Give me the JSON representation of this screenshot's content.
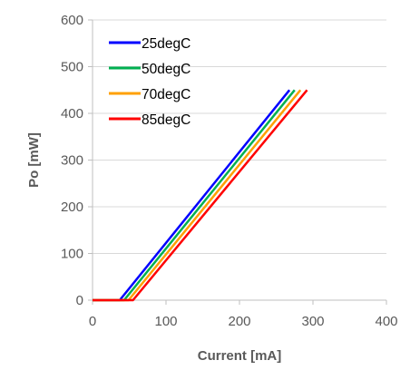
{
  "chart_data": {
    "type": "line",
    "title": "",
    "xlabel": "Current [mA]",
    "ylabel": "Po [mW]",
    "xlim": [
      0,
      400
    ],
    "ylim": [
      0,
      600
    ],
    "xticks": [
      0,
      100,
      200,
      300,
      400
    ],
    "yticks": [
      0,
      100,
      200,
      300,
      400,
      500,
      600
    ],
    "x_tick_labels": [
      "0",
      "100",
      "200",
      "300",
      "400"
    ],
    "y_tick_labels": [
      "0",
      "100",
      "200",
      "300",
      "400",
      "500",
      "600"
    ],
    "grid": "horizontal",
    "legend_position": "top-left",
    "series": [
      {
        "name": "25degC",
        "color": "#0000FF",
        "x": [
          0,
          37,
          268
        ],
        "y": [
          0,
          0,
          450
        ]
      },
      {
        "name": "50degC",
        "color": "#00B050",
        "x": [
          0,
          43,
          275
        ],
        "y": [
          0,
          0,
          450
        ]
      },
      {
        "name": "70degC",
        "color": "#FFA000",
        "x": [
          0,
          49,
          283
        ],
        "y": [
          0,
          0,
          450
        ]
      },
      {
        "name": "85degC",
        "color": "#FF0000",
        "x": [
          0,
          55,
          292
        ],
        "y": [
          0,
          0,
          450
        ]
      }
    ]
  }
}
